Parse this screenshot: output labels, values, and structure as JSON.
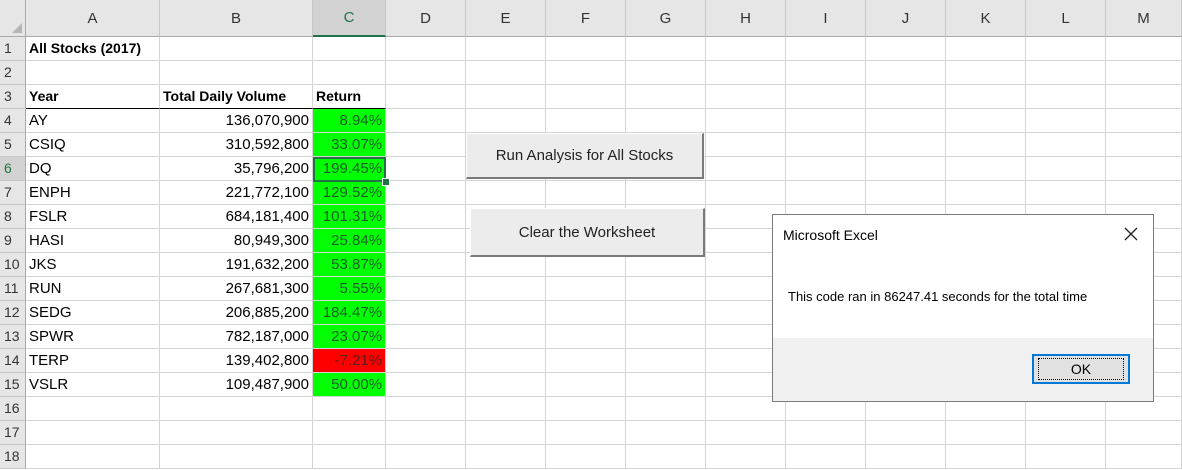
{
  "columns": [
    "A",
    "B",
    "C",
    "D",
    "E",
    "F",
    "G",
    "H",
    "I",
    "J",
    "K",
    "L",
    "M"
  ],
  "rows": [
    "1",
    "2",
    "3",
    "4",
    "5",
    "6",
    "7",
    "8",
    "9",
    "10",
    "11",
    "12",
    "13",
    "14",
    "15",
    "16",
    "17",
    "18"
  ],
  "sheet": {
    "title": "All Stocks (2017)",
    "headers": {
      "ticker": "Year",
      "volume": "Total Daily Volume",
      "return": "Return"
    },
    "data": [
      {
        "ticker": "AY",
        "volume": "136,070,900",
        "return": "8.94%"
      },
      {
        "ticker": "CSIQ",
        "volume": "310,592,800",
        "return": "33.07%"
      },
      {
        "ticker": "DQ",
        "volume": "35,796,200",
        "return": "199.45%"
      },
      {
        "ticker": "ENPH",
        "volume": "221,772,100",
        "return": "129.52%"
      },
      {
        "ticker": "FSLR",
        "volume": "684,181,400",
        "return": "101.31%"
      },
      {
        "ticker": "HASI",
        "volume": "80,949,300",
        "return": "25.84%"
      },
      {
        "ticker": "JKS",
        "volume": "191,632,200",
        "return": "53.87%"
      },
      {
        "ticker": "RUN",
        "volume": "267,681,300",
        "return": "5.55%"
      },
      {
        "ticker": "SEDG",
        "volume": "206,885,200",
        "return": "184.47%"
      },
      {
        "ticker": "SPWR",
        "volume": "782,187,000",
        "return": "23.07%"
      },
      {
        "ticker": "TERP",
        "volume": "139,402,800",
        "return": "-7.21%"
      },
      {
        "ticker": "VSLR",
        "volume": "109,487,900",
        "return": "50.00%"
      }
    ]
  },
  "selection": {
    "cell": "C6",
    "column": "C",
    "row": "6"
  },
  "buttons": {
    "run_label": "Run Analysis for All Stocks",
    "clear_label": "Clear the Worksheet"
  },
  "dialog": {
    "title": "Microsoft Excel",
    "message": "This code ran in 86247.41 seconds for the total time",
    "ok_label": "OK",
    "close_icon": "close-icon"
  },
  "colors": {
    "positive_fill": "#00ff00",
    "negative_fill": "#ff0000",
    "selection": "#217346",
    "dialog_focus": "#0078d7"
  }
}
